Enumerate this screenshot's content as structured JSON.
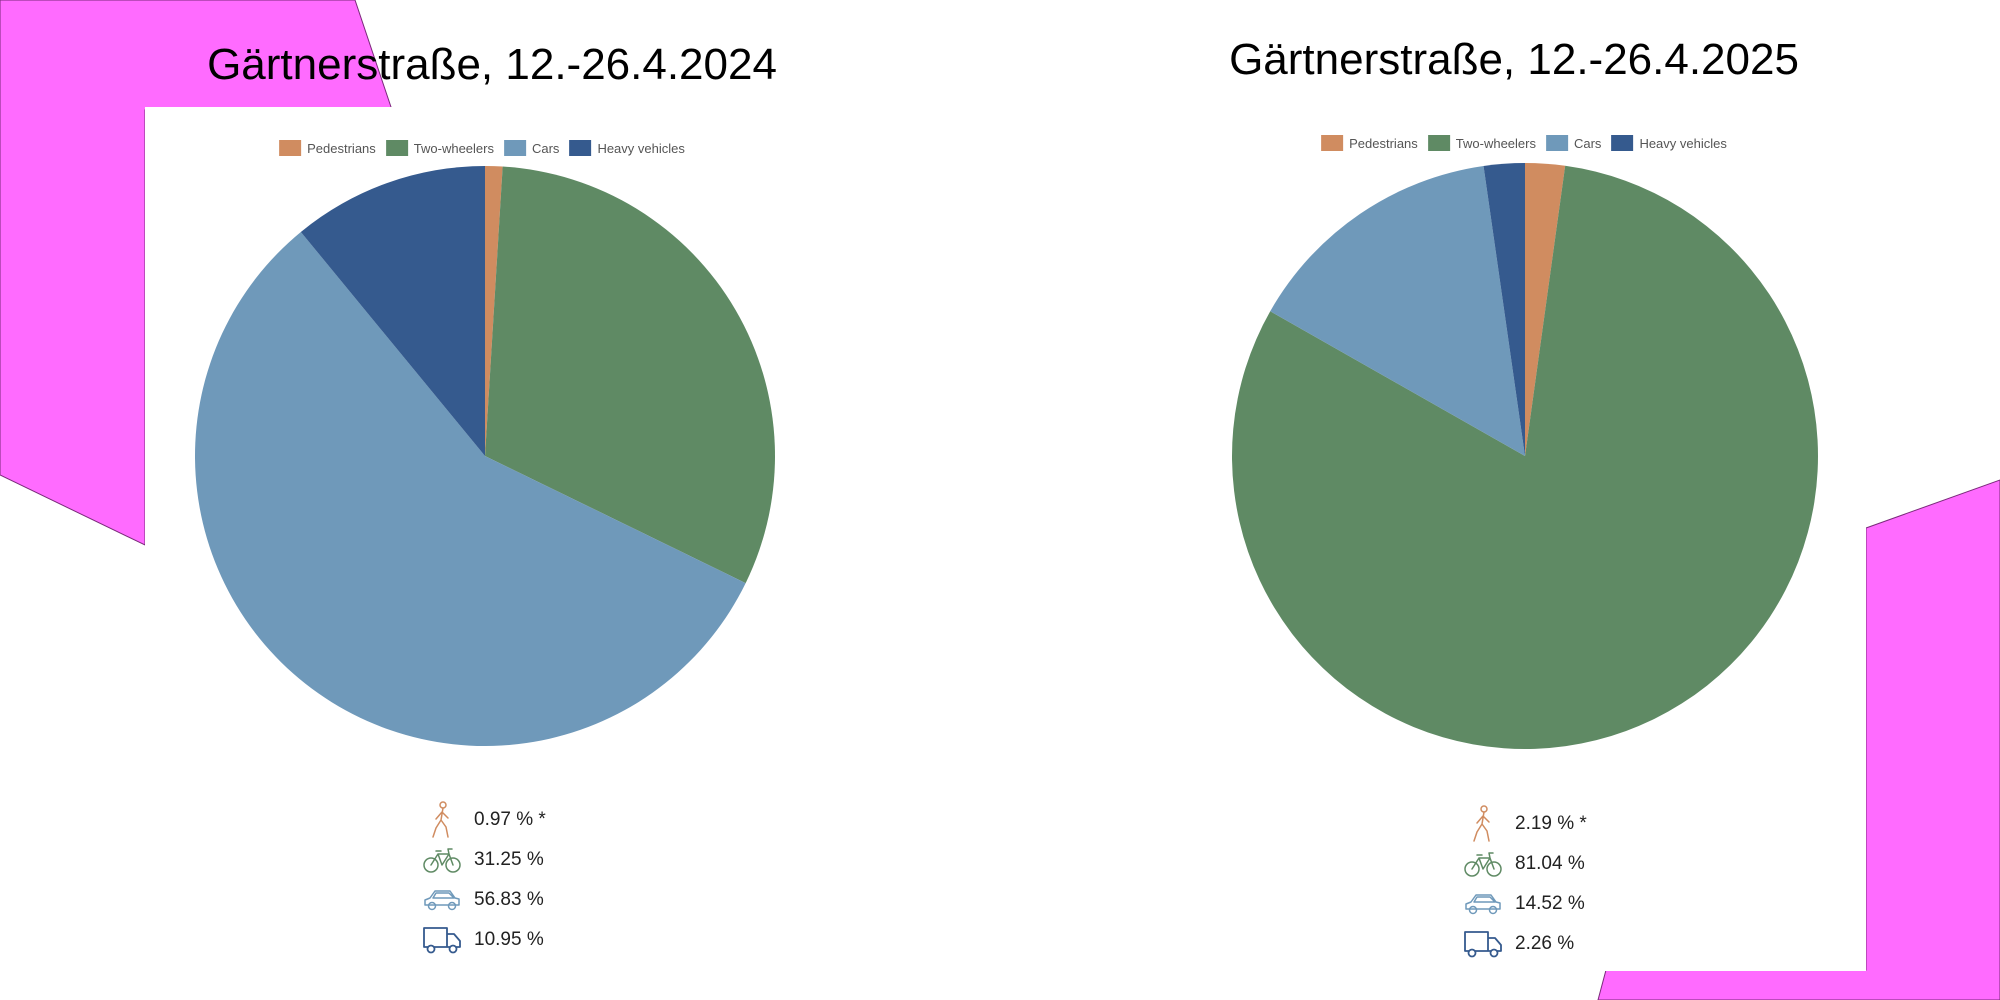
{
  "colors": {
    "pedestrians": "#d08c60",
    "two_wheelers": "#5f8a64",
    "cars": "#6f99ba",
    "heavy_vehicles": "#355a8e",
    "background_shape": "#ff6bff"
  },
  "legend": [
    "Pedestrians",
    "Two-wheelers",
    "Cars",
    "Heavy vehicles"
  ],
  "icons": [
    "pedestrian-icon",
    "bicycle-icon",
    "car-icon",
    "truck-icon"
  ],
  "chart_data": [
    {
      "type": "pie",
      "title": "Gärtnerstraße, 12.-26.4.2024",
      "categories": [
        "Pedestrians",
        "Two-wheelers",
        "Cars",
        "Heavy vehicles"
      ],
      "values": [
        0.97,
        31.25,
        56.83,
        10.95
      ],
      "value_labels": [
        "0.97 % *",
        "31.25 %",
        "56.83 %",
        "10.95 %"
      ],
      "legend_position": "top"
    },
    {
      "type": "pie",
      "title": "Gärtnerstraße, 12.-26.4.2025",
      "categories": [
        "Pedestrians",
        "Two-wheelers",
        "Cars",
        "Heavy vehicles"
      ],
      "values": [
        2.19,
        81.04,
        14.52,
        2.26
      ],
      "value_labels": [
        "2.19 % *",
        "81.04 %",
        "14.52 %",
        "2.26 %"
      ],
      "legend_position": "top"
    }
  ]
}
